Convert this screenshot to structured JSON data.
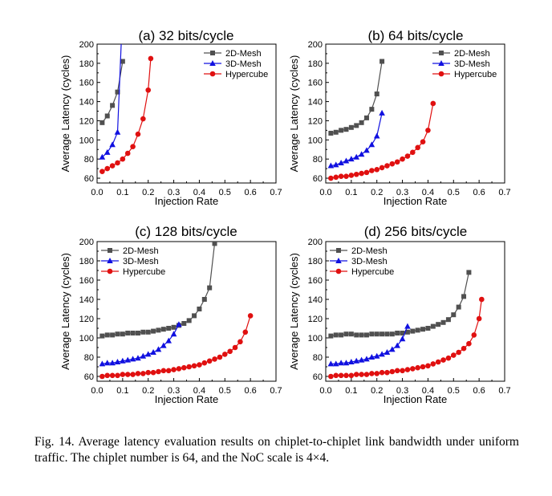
{
  "caption": "Fig. 14.  Average latency evaluation results on chiplet-to-chiplet link bandwidth under uniform traffic. The chiplet number is 64, and the NoC scale is 4×4.",
  "colors": {
    "2D-Mesh": "#505050",
    "3D-Mesh": "#1010e0",
    "Hypercube": "#e01010"
  },
  "chart_data": [
    {
      "type": "line",
      "title": "(a) 32 bits/cycle",
      "xlabel": "Injection Rate",
      "ylabel": "Average Latency (cycles)",
      "xlim": [
        0.0,
        0.7
      ],
      "ylim": [
        55,
        200
      ],
      "xticks": [
        "0.0",
        "0.1",
        "0.2",
        "0.3",
        "0.4",
        "0.5",
        "0.6",
        "0.7"
      ],
      "yticks": [
        "60",
        "80",
        "100",
        "120",
        "140",
        "160",
        "180",
        "200"
      ],
      "legend": "top-right",
      "series": [
        {
          "name": "2D-Mesh",
          "marker": "square",
          "x": [
            0.02,
            0.04,
            0.06,
            0.08,
            0.1
          ],
          "y": [
            118,
            125,
            136,
            150,
            182
          ]
        },
        {
          "name": "3D-Mesh",
          "marker": "triangle",
          "x": [
            0.02,
            0.04,
            0.06,
            0.08,
            0.095
          ],
          "y": [
            82,
            87,
            95,
            108,
            205
          ]
        },
        {
          "name": "Hypercube",
          "marker": "circle",
          "x": [
            0.02,
            0.04,
            0.06,
            0.08,
            0.1,
            0.12,
            0.14,
            0.16,
            0.18,
            0.2,
            0.21
          ],
          "y": [
            67,
            70,
            73,
            76,
            80,
            86,
            93,
            106,
            122,
            152,
            185
          ]
        }
      ]
    },
    {
      "type": "line",
      "title": "(b) 64 bits/cycle",
      "xlabel": "Injection Rate",
      "ylabel": "Average Latency (cycles)",
      "xlim": [
        0.0,
        0.7
      ],
      "ylim": [
        55,
        200
      ],
      "xticks": [
        "0.0",
        "0.1",
        "0.2",
        "0.3",
        "0.4",
        "0.5",
        "0.6",
        "0.7"
      ],
      "yticks": [
        "60",
        "80",
        "100",
        "120",
        "140",
        "160",
        "180",
        "200"
      ],
      "legend": "top-right",
      "series": [
        {
          "name": "2D-Mesh",
          "marker": "square",
          "x": [
            0.02,
            0.04,
            0.06,
            0.08,
            0.1,
            0.12,
            0.14,
            0.16,
            0.18,
            0.2,
            0.22
          ],
          "y": [
            107,
            108,
            110,
            111,
            113,
            115,
            118,
            123,
            132,
            148,
            182
          ]
        },
        {
          "name": "3D-Mesh",
          "marker": "triangle",
          "x": [
            0.02,
            0.04,
            0.06,
            0.08,
            0.1,
            0.12,
            0.14,
            0.16,
            0.18,
            0.2,
            0.22
          ],
          "y": [
            73,
            74,
            76,
            78,
            80,
            82,
            85,
            89,
            95,
            104,
            128
          ]
        },
        {
          "name": "Hypercube",
          "marker": "circle",
          "x": [
            0.02,
            0.04,
            0.06,
            0.08,
            0.1,
            0.12,
            0.14,
            0.16,
            0.18,
            0.2,
            0.22,
            0.24,
            0.26,
            0.28,
            0.3,
            0.32,
            0.34,
            0.36,
            0.38,
            0.4,
            0.42
          ],
          "y": [
            60,
            61,
            62,
            62,
            63,
            64,
            65,
            66,
            68,
            69,
            71,
            73,
            75,
            77,
            80,
            83,
            87,
            92,
            98,
            110,
            138
          ]
        }
      ]
    },
    {
      "type": "line",
      "title": "(c) 128 bits/cycle",
      "xlabel": "Injection Rate",
      "ylabel": "Average Latency (cycles)",
      "xlim": [
        0.0,
        0.7
      ],
      "ylim": [
        55,
        200
      ],
      "xticks": [
        "0.0",
        "0.1",
        "0.2",
        "0.3",
        "0.4",
        "0.5",
        "0.6",
        "0.7"
      ],
      "yticks": [
        "60",
        "80",
        "100",
        "120",
        "140",
        "160",
        "180",
        "200"
      ],
      "legend": "top-left",
      "series": [
        {
          "name": "2D-Mesh",
          "marker": "square",
          "x": [
            0.02,
            0.04,
            0.06,
            0.08,
            0.1,
            0.12,
            0.14,
            0.16,
            0.18,
            0.2,
            0.22,
            0.24,
            0.26,
            0.28,
            0.3,
            0.32,
            0.34,
            0.36,
            0.38,
            0.4,
            0.42,
            0.44,
            0.46
          ],
          "y": [
            102,
            103,
            103,
            104,
            104,
            105,
            105,
            105,
            106,
            106,
            107,
            108,
            109,
            110,
            111,
            113,
            115,
            118,
            123,
            130,
            140,
            152,
            198
          ]
        },
        {
          "name": "3D-Mesh",
          "marker": "triangle",
          "x": [
            0.02,
            0.04,
            0.06,
            0.08,
            0.1,
            0.12,
            0.14,
            0.16,
            0.18,
            0.2,
            0.22,
            0.24,
            0.26,
            0.28,
            0.3,
            0.32
          ],
          "y": [
            73,
            74,
            74,
            75,
            76,
            77,
            78,
            79,
            81,
            83,
            85,
            88,
            92,
            97,
            104,
            114
          ]
        },
        {
          "name": "Hypercube",
          "marker": "circle",
          "x": [
            0.02,
            0.04,
            0.06,
            0.08,
            0.1,
            0.12,
            0.14,
            0.16,
            0.18,
            0.2,
            0.22,
            0.24,
            0.26,
            0.28,
            0.3,
            0.32,
            0.34,
            0.36,
            0.38,
            0.4,
            0.42,
            0.44,
            0.46,
            0.48,
            0.5,
            0.52,
            0.54,
            0.56,
            0.58,
            0.6
          ],
          "y": [
            60,
            61,
            61,
            61,
            62,
            62,
            62,
            63,
            63,
            64,
            64,
            65,
            66,
            66,
            67,
            68,
            69,
            70,
            71,
            72,
            74,
            76,
            78,
            80,
            83,
            86,
            90,
            96,
            106,
            123
          ]
        }
      ]
    },
    {
      "type": "line",
      "title": "(d) 256 bits/cycle",
      "xlabel": "Injection Rate",
      "ylabel": "Average Latency (cycles)",
      "xlim": [
        0.0,
        0.7
      ],
      "ylim": [
        55,
        200
      ],
      "xticks": [
        "0.0",
        "0.1",
        "0.2",
        "0.3",
        "0.4",
        "0.5",
        "0.6",
        "0.7"
      ],
      "yticks": [
        "60",
        "80",
        "100",
        "120",
        "140",
        "160",
        "180",
        "200"
      ],
      "legend": "top-left",
      "series": [
        {
          "name": "2D-Mesh",
          "marker": "square",
          "x": [
            0.02,
            0.04,
            0.06,
            0.08,
            0.1,
            0.12,
            0.14,
            0.16,
            0.18,
            0.2,
            0.22,
            0.24,
            0.26,
            0.28,
            0.3,
            0.32,
            0.34,
            0.36,
            0.38,
            0.4,
            0.42,
            0.44,
            0.46,
            0.48,
            0.5,
            0.52,
            0.54,
            0.56
          ],
          "y": [
            102,
            103,
            103,
            104,
            104,
            103,
            103,
            103,
            104,
            104,
            104,
            104,
            104,
            105,
            105,
            106,
            107,
            108,
            109,
            110,
            112,
            114,
            116,
            119,
            124,
            132,
            143,
            168
          ]
        },
        {
          "name": "3D-Mesh",
          "marker": "triangle",
          "x": [
            0.02,
            0.04,
            0.06,
            0.08,
            0.1,
            0.12,
            0.14,
            0.16,
            0.18,
            0.2,
            0.22,
            0.24,
            0.26,
            0.28,
            0.3,
            0.32
          ],
          "y": [
            73,
            73,
            74,
            74,
            75,
            76,
            77,
            78,
            80,
            81,
            83,
            85,
            88,
            92,
            99,
            112
          ]
        },
        {
          "name": "Hypercube",
          "marker": "circle",
          "x": [
            0.02,
            0.04,
            0.06,
            0.08,
            0.1,
            0.12,
            0.14,
            0.16,
            0.18,
            0.2,
            0.22,
            0.24,
            0.26,
            0.28,
            0.3,
            0.32,
            0.34,
            0.36,
            0.38,
            0.4,
            0.42,
            0.44,
            0.46,
            0.48,
            0.5,
            0.52,
            0.54,
            0.56,
            0.58,
            0.6,
            0.61
          ],
          "y": [
            60,
            61,
            61,
            61,
            61,
            62,
            62,
            62,
            63,
            63,
            64,
            64,
            65,
            66,
            66,
            67,
            68,
            69,
            70,
            71,
            73,
            75,
            77,
            79,
            82,
            85,
            89,
            94,
            103,
            120,
            140
          ]
        }
      ]
    }
  ]
}
